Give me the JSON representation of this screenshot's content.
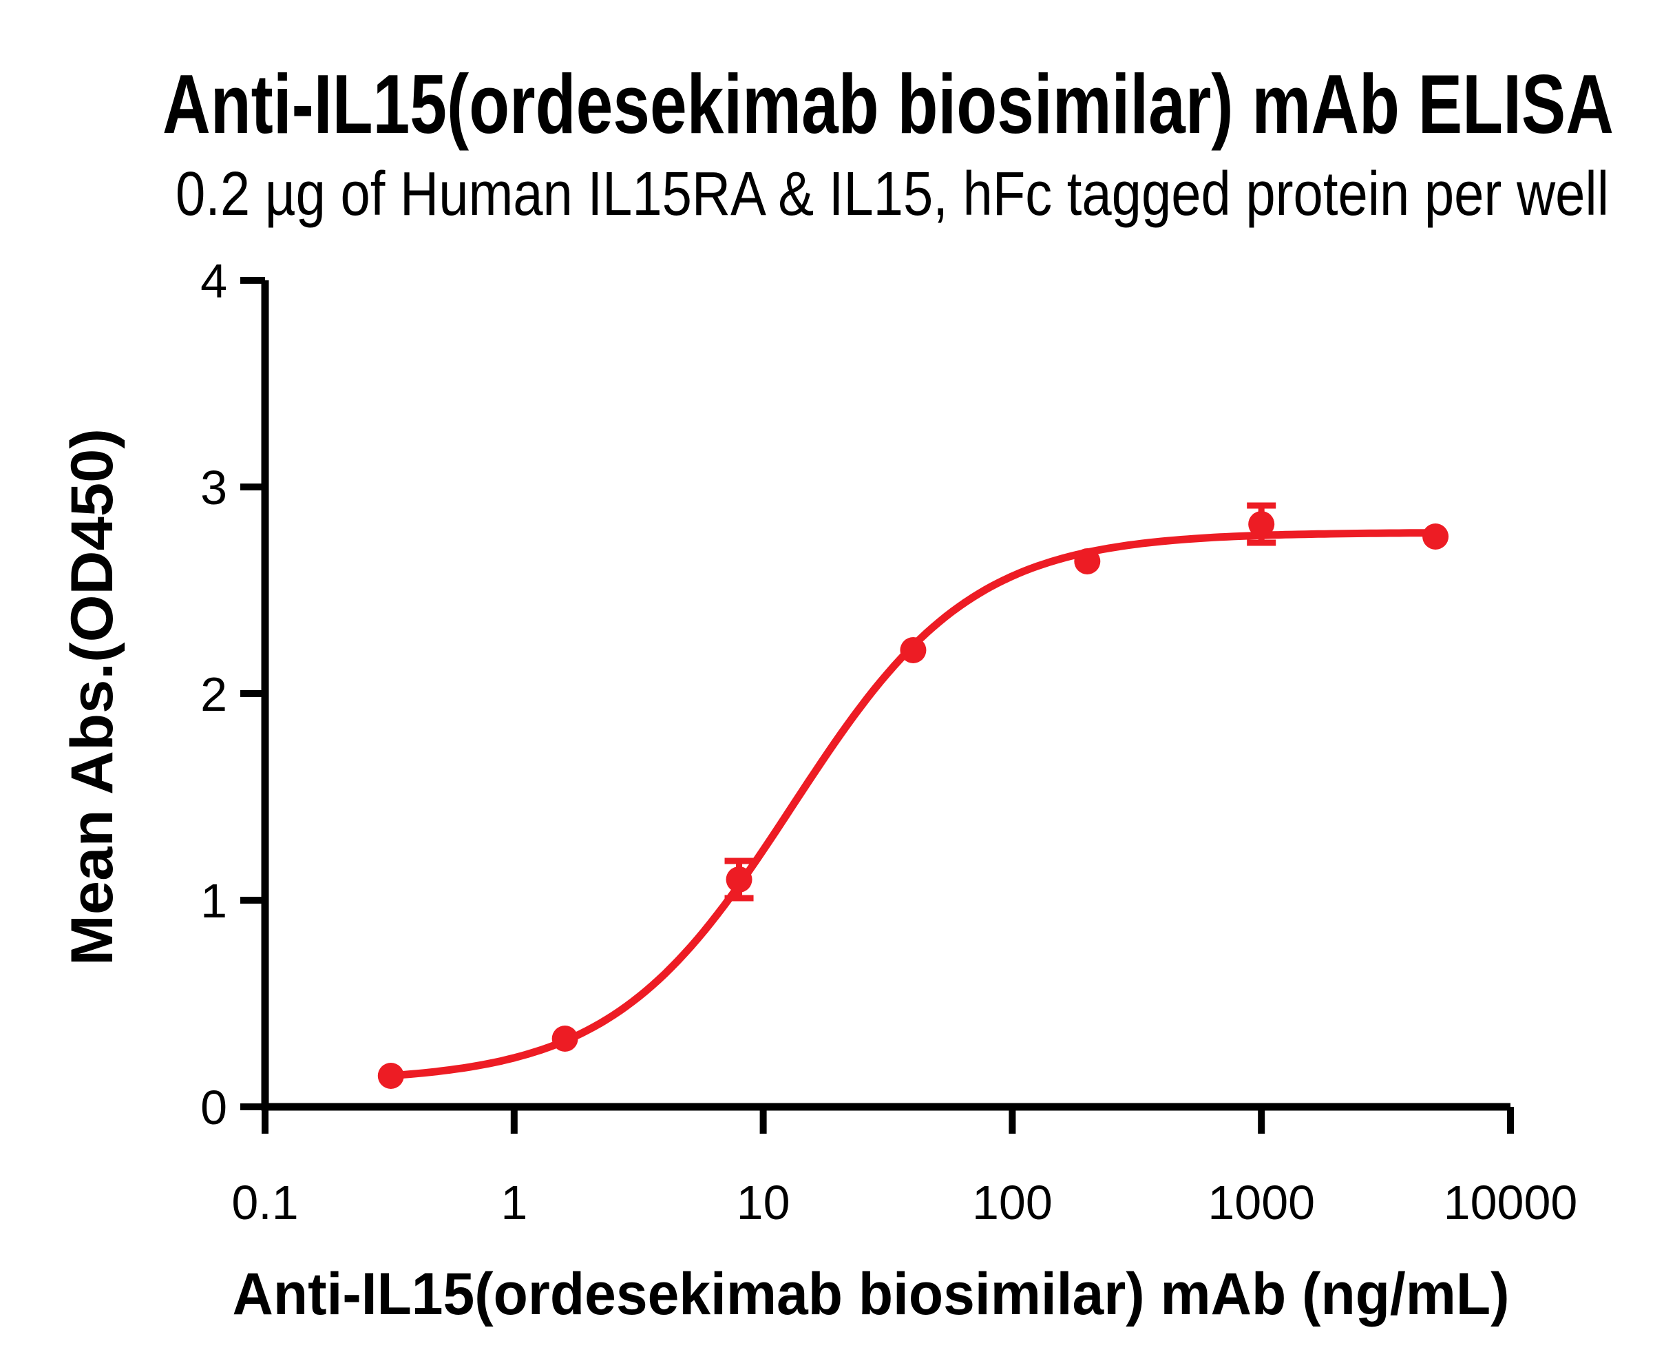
{
  "figure": {
    "background": "#ffffff",
    "text_color": "#000000"
  },
  "chart_data": {
    "type": "scatter",
    "title": "Anti-IL15(ordesekimab biosimilar) mAb ELISA",
    "subtitle": "0.2 µg of Human IL15RA & IL15, hFc tagged protein per well",
    "xlabel": "Anti-IL15(ordesekimab biosimilar) mAb (ng/mL)",
    "ylabel": "Mean Abs.(OD450)",
    "x_scale": "log",
    "xlim": [
      0.1,
      10000
    ],
    "ylim": [
      0,
      4
    ],
    "x_ticks": [
      0.1,
      1,
      10,
      100,
      1000,
      10000
    ],
    "x_tick_labels": [
      "0.1",
      "1",
      "10",
      "100",
      "1000",
      "10000"
    ],
    "y_ticks": [
      0,
      1,
      2,
      3,
      4
    ],
    "y_tick_labels": [
      "0",
      "1",
      "2",
      "3",
      "4"
    ],
    "grid": false,
    "legend": "none",
    "series": [
      {
        "name": "Anti-IL15(ordesekimab biosimilar) mAb",
        "color": "#ED1C24",
        "marker": "circle",
        "points": [
          {
            "x": 0.32,
            "y": 0.15,
            "err": null
          },
          {
            "x": 1.6,
            "y": 0.33,
            "err": null
          },
          {
            "x": 8,
            "y": 1.1,
            "err": 0.09
          },
          {
            "x": 40,
            "y": 2.21,
            "err": null
          },
          {
            "x": 200,
            "y": 2.64,
            "err": null
          },
          {
            "x": 1000,
            "y": 2.82,
            "err": 0.09
          },
          {
            "x": 5000,
            "y": 2.76,
            "err": null
          }
        ],
        "fit_curve": {
          "model": "4PL",
          "bottom": 0.12,
          "top": 2.78,
          "ec50": 13,
          "hill": 1.2,
          "x_start": 0.32,
          "x_end": 5000
        }
      }
    ]
  }
}
